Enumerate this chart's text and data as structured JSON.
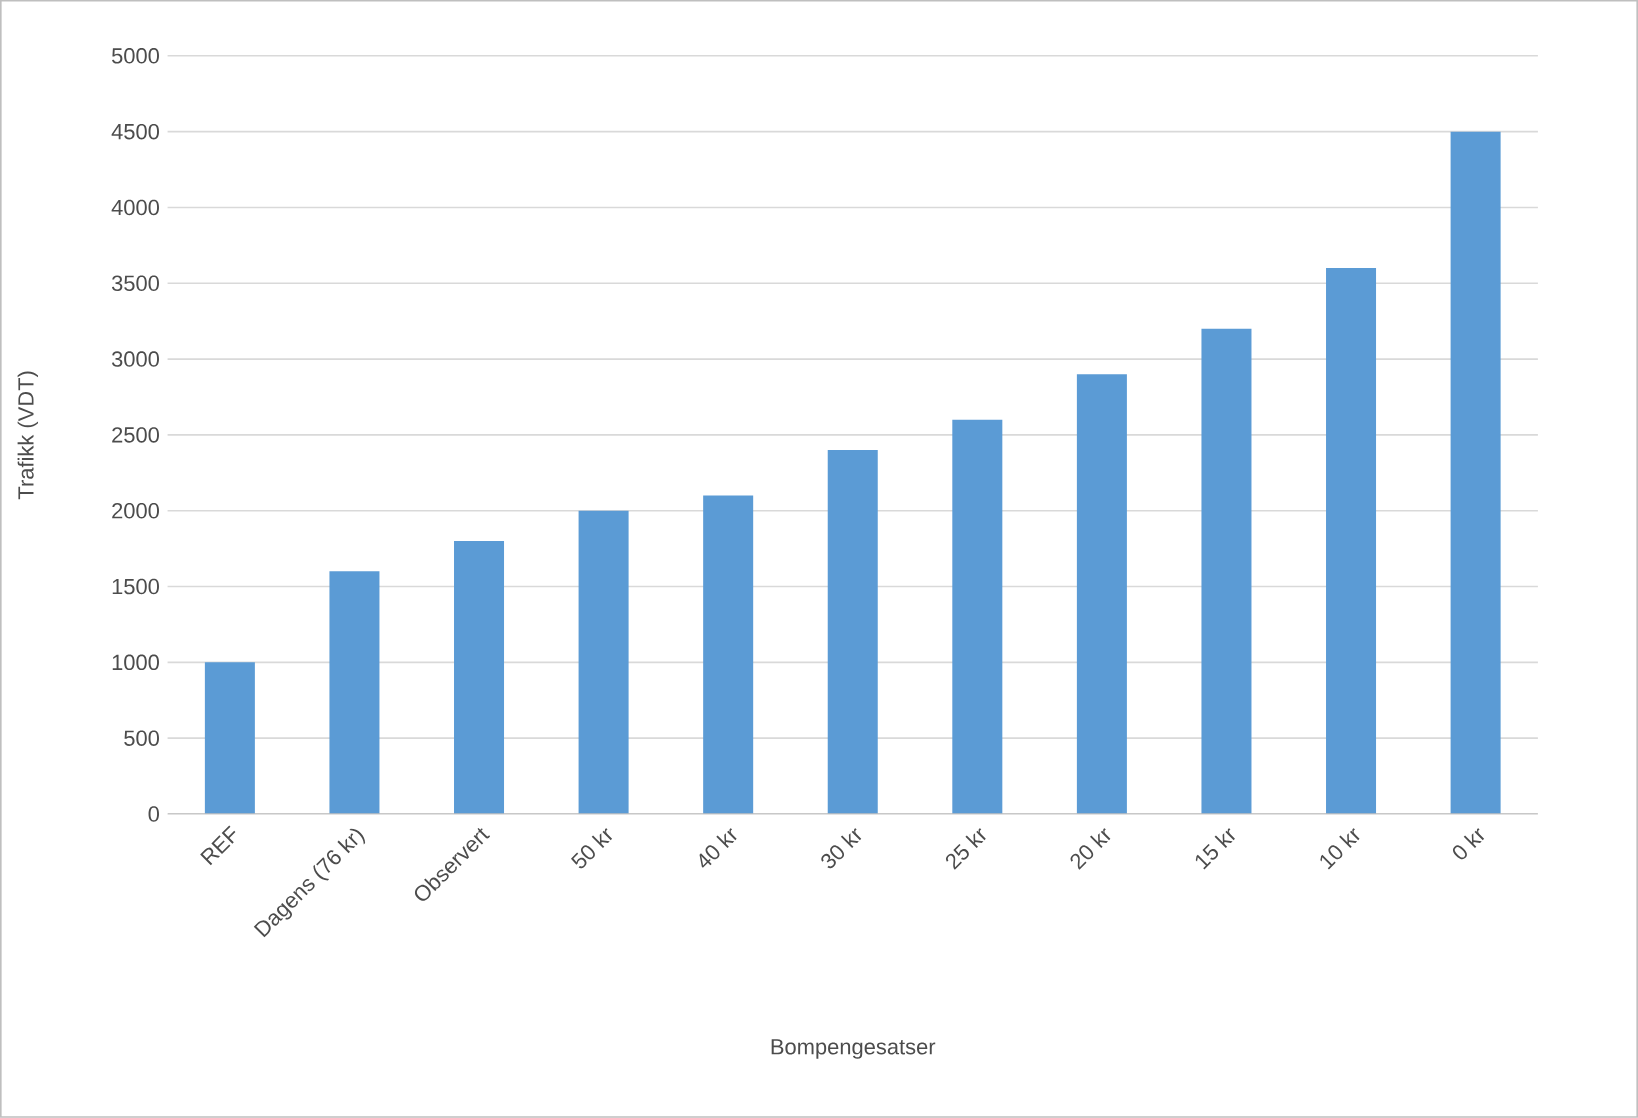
{
  "chart_data": {
    "type": "bar",
    "xlabel": "Bompengesatser",
    "ylabel": "Trafikk (VDT)",
    "categories": [
      "REF",
      "Dagens (76 kr)",
      "Observert",
      "50 kr",
      "40 kr",
      "30 kr",
      "25 kr",
      "20 kr",
      "15 kr",
      "10 kr",
      "0 kr"
    ],
    "values": [
      1000,
      1600,
      1800,
      2000,
      2100,
      2400,
      2600,
      2900,
      3200,
      3600,
      4500
    ],
    "color": "#5b9bd5",
    "ylim": [
      0,
      5000
    ],
    "yticks": [
      0,
      500,
      1000,
      1500,
      2000,
      2500,
      3000,
      3500,
      4000,
      4500,
      5000
    ],
    "grid": "y"
  }
}
